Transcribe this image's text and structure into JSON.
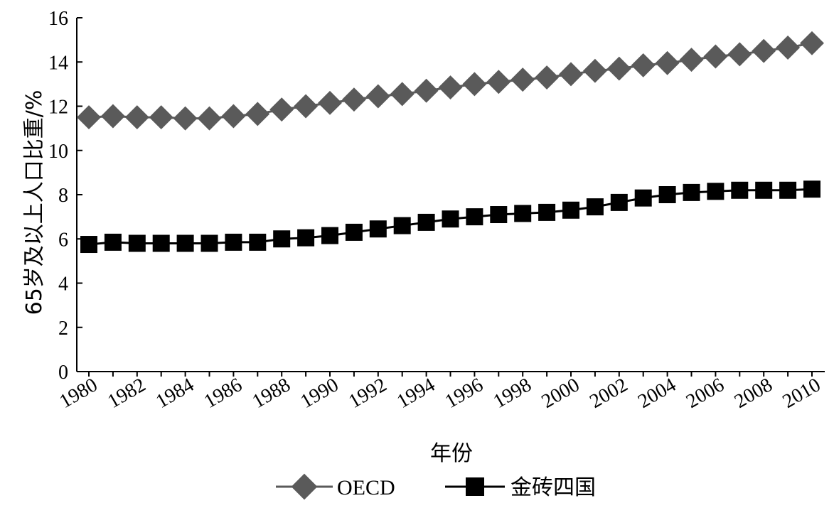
{
  "chart_data": {
    "type": "line",
    "title": "",
    "xlabel": "年份",
    "ylabel": "65岁及以上人口比重/%",
    "x": [
      1980,
      1981,
      1982,
      1983,
      1984,
      1985,
      1986,
      1987,
      1988,
      1989,
      1990,
      1991,
      1992,
      1993,
      1994,
      1995,
      1996,
      1997,
      1998,
      1999,
      2000,
      2001,
      2002,
      2003,
      2004,
      2005,
      2006,
      2007,
      2008,
      2009,
      2010
    ],
    "x_tick_labels": [
      "1980",
      "1982",
      "1984",
      "1986",
      "1988",
      "1990",
      "1992",
      "1994",
      "1996",
      "1998",
      "2000",
      "2002",
      "2004",
      "2006",
      "2008",
      "2010"
    ],
    "y_tick_labels": [
      "0",
      "2",
      "4",
      "6",
      "8",
      "10",
      "12",
      "14",
      "16"
    ],
    "ylim": [
      0,
      16
    ],
    "xlim": [
      1980,
      2010
    ],
    "grid": false,
    "legend_position": "bottom-center",
    "series": [
      {
        "name": "OECD",
        "marker": "diamond",
        "color": "#5a5a5a",
        "values": [
          11.5,
          11.55,
          11.5,
          11.5,
          11.45,
          11.45,
          11.55,
          11.65,
          11.85,
          12.0,
          12.15,
          12.3,
          12.45,
          12.55,
          12.7,
          12.85,
          13.0,
          13.1,
          13.2,
          13.3,
          13.45,
          13.6,
          13.7,
          13.85,
          13.95,
          14.1,
          14.25,
          14.35,
          14.5,
          14.65,
          14.85
        ]
      },
      {
        "name": "金砖四国",
        "marker": "square",
        "color": "#000000",
        "values": [
          5.75,
          5.85,
          5.8,
          5.8,
          5.8,
          5.8,
          5.85,
          5.85,
          6.0,
          6.05,
          6.15,
          6.3,
          6.45,
          6.6,
          6.75,
          6.9,
          7.0,
          7.1,
          7.15,
          7.2,
          7.3,
          7.45,
          7.65,
          7.85,
          8.0,
          8.1,
          8.15,
          8.2,
          8.2,
          8.2,
          8.25
        ]
      }
    ]
  }
}
